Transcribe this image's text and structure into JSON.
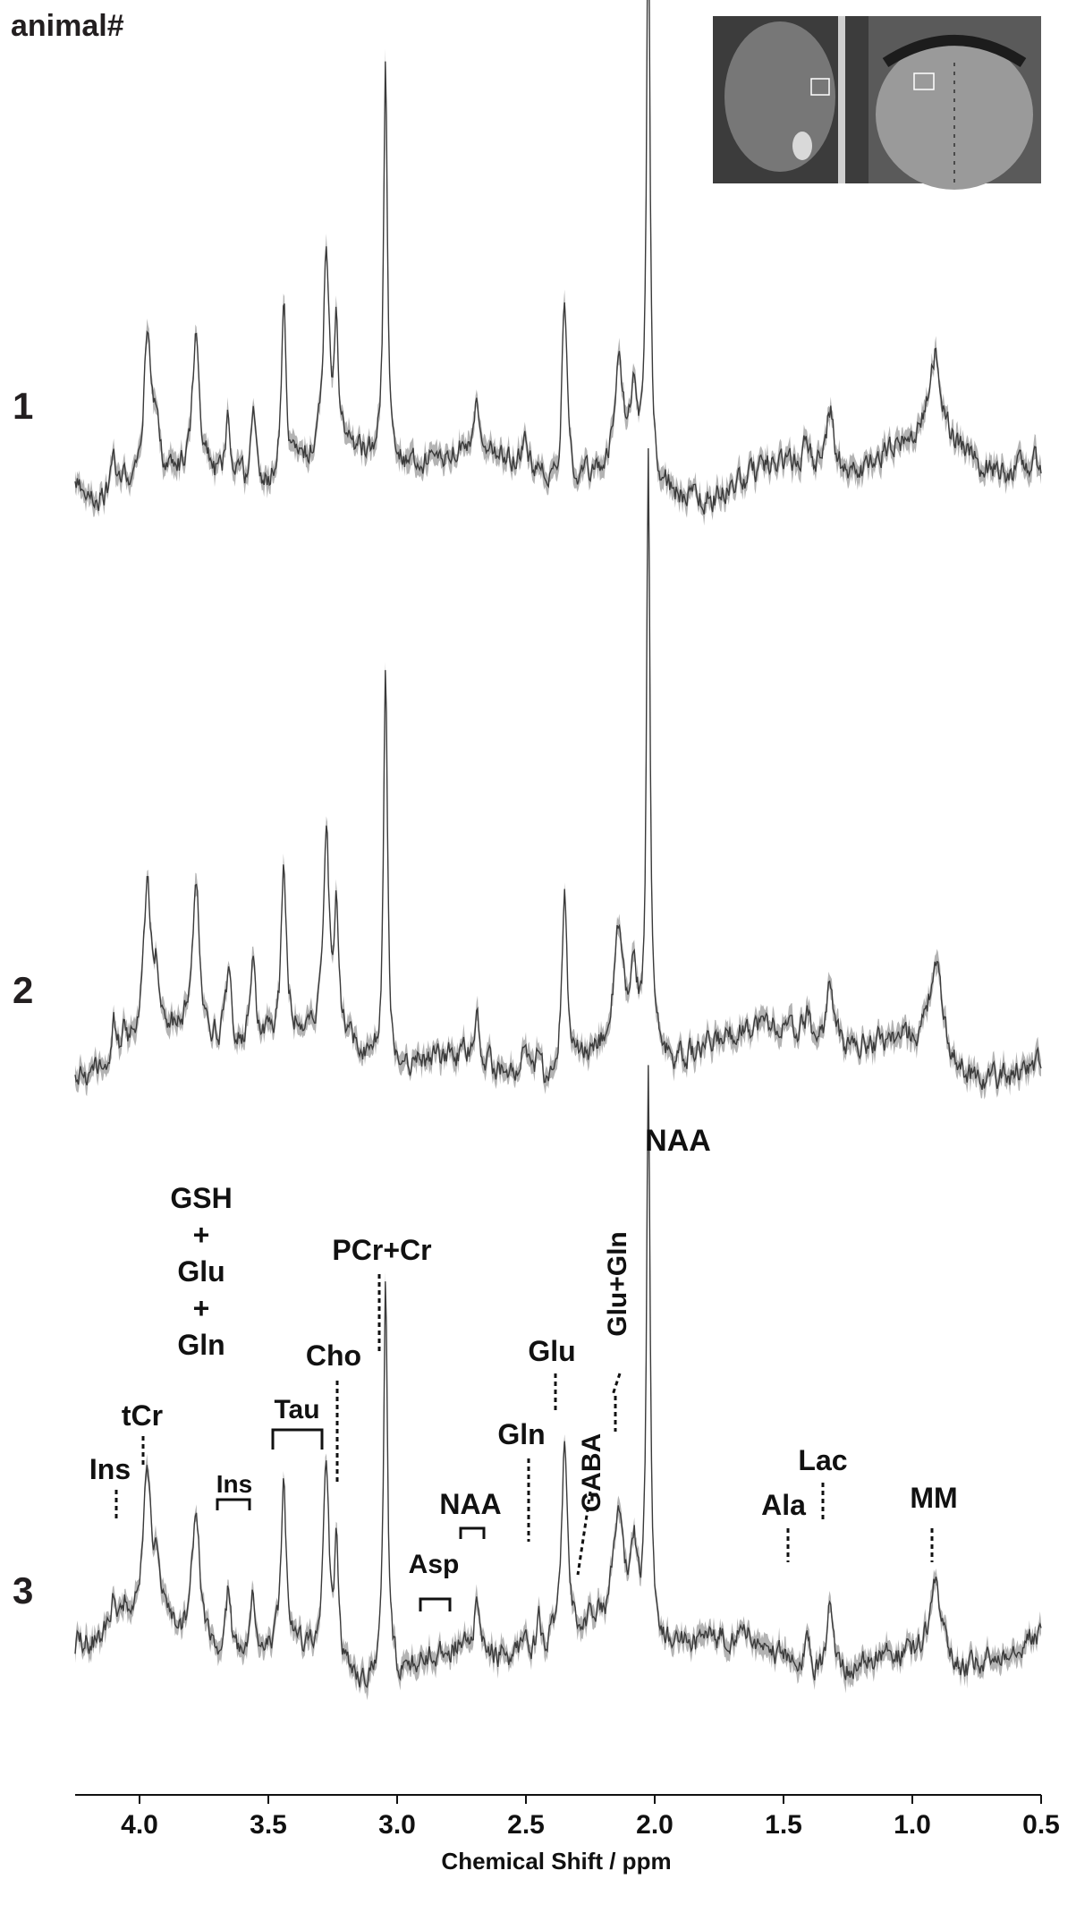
{
  "header": {
    "label": "animal#"
  },
  "inset": {
    "description_icon": "mri-brain-icon"
  },
  "chart_data": {
    "type": "line",
    "xlabel": "Chemical Shift / ppm",
    "ylabel": "",
    "xlim": [
      4.25,
      0.5
    ],
    "x_reversed": true,
    "xticks": [
      4.0,
      3.5,
      3.0,
      2.5,
      2.0,
      1.5,
      1.0,
      0.5
    ],
    "xtick_labels": [
      "4.0",
      "3.5",
      "3.0",
      "2.5",
      "2.0",
      "1.5",
      "1.0",
      "0.5"
    ],
    "series": [
      {
        "name": "1",
        "band_color": "#b3b3b3",
        "line_color": "#3a3a3a"
      },
      {
        "name": "2",
        "band_color": "#b3b3b3",
        "line_color": "#3a3a3a"
      },
      {
        "name": "3",
        "band_color": "#b3b3b3",
        "line_color": "#3a3a3a"
      }
    ],
    "peaks": [
      {
        "ppm": 4.1,
        "height": 0.08,
        "width": 0.012
      },
      {
        "ppm": 4.055,
        "height": 0.05,
        "width": 0.012
      },
      {
        "ppm": 3.97,
        "height": 0.33,
        "width": 0.017
      },
      {
        "ppm": 3.935,
        "height": 0.12,
        "width": 0.013
      },
      {
        "ppm": 3.78,
        "height": 0.3,
        "width": 0.018
      },
      {
        "ppm": 3.655,
        "height": 0.15,
        "width": 0.012
      },
      {
        "ppm": 3.56,
        "height": 0.17,
        "width": 0.012
      },
      {
        "ppm": 3.44,
        "height": 0.38,
        "width": 0.011
      },
      {
        "ppm": 3.275,
        "height": 0.44,
        "width": 0.013
      },
      {
        "ppm": 3.235,
        "height": 0.25,
        "width": 0.009
      },
      {
        "ppm": 3.045,
        "height": 0.85,
        "width": 0.009
      },
      {
        "ppm": 2.69,
        "height": 0.11,
        "width": 0.011
      },
      {
        "ppm": 2.505,
        "height": 0.07,
        "width": 0.012
      },
      {
        "ppm": 2.45,
        "height": 0.06,
        "width": 0.01
      },
      {
        "ppm": 2.35,
        "height": 0.41,
        "width": 0.012
      },
      {
        "ppm": 2.14,
        "height": 0.24,
        "width": 0.022
      },
      {
        "ppm": 2.08,
        "height": 0.16,
        "width": 0.015
      },
      {
        "ppm": 2.025,
        "height": 1.25,
        "width": 0.008
      },
      {
        "ppm": 1.41,
        "height": 0.05,
        "width": 0.018
      },
      {
        "ppm": 1.32,
        "height": 0.14,
        "width": 0.018
      },
      {
        "ppm": 0.91,
        "height": 0.2,
        "width": 0.03
      }
    ],
    "annotations": [
      {
        "text": "NAA"
      },
      {
        "text": "GSH"
      },
      {
        "text": "+"
      },
      {
        "text": "Glu"
      },
      {
        "text": "+"
      },
      {
        "text": "Gln"
      },
      {
        "text": "PCr+Cr"
      },
      {
        "text": "Glu+Gln"
      },
      {
        "text": "Cho"
      },
      {
        "text": "Glu"
      },
      {
        "text": "tCr"
      },
      {
        "text": "Tau"
      },
      {
        "text": "Gln"
      },
      {
        "text": "Lac"
      },
      {
        "text": "GABA"
      },
      {
        "text": "Ins"
      },
      {
        "text": "Ins"
      },
      {
        "text": "NAA"
      },
      {
        "text": "Ala"
      },
      {
        "text": "MM"
      },
      {
        "text": "Asp"
      }
    ]
  }
}
